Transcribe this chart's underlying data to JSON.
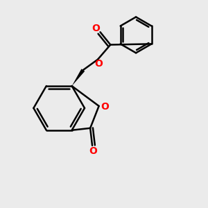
{
  "background_color": "#ebebeb",
  "bond_color": "#000000",
  "oxygen_color": "#ff0000",
  "bond_width": 1.8,
  "figsize": [
    3.0,
    3.0
  ],
  "dpi": 100,
  "xlim": [
    0,
    10
  ],
  "ylim": [
    0,
    10
  ]
}
